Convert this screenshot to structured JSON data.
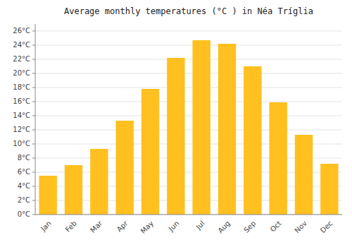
{
  "chart_data": {
    "type": "bar",
    "title": "Average monthly temperatures (°C ) in Néa Tríglia",
    "categories": [
      "Jan",
      "Feb",
      "Mar",
      "Apr",
      "May",
      "Jun",
      "Jul",
      "Aug",
      "Sep",
      "Oct",
      "Nov",
      "Dec"
    ],
    "values": [
      5.5,
      7.0,
      9.3,
      13.3,
      17.8,
      22.2,
      24.7,
      24.2,
      21.0,
      15.9,
      11.3,
      7.2
    ],
    "color": "#FFC020",
    "ylim": [
      0,
      27
    ],
    "yticks": [
      {
        "value": 0,
        "label": "0°C"
      },
      {
        "value": 2,
        "label": "2°C"
      },
      {
        "value": 4,
        "label": "4°C"
      },
      {
        "value": 6,
        "label": "6°C"
      },
      {
        "value": 8,
        "label": "8°C"
      },
      {
        "value": 10,
        "label": "10°C"
      },
      {
        "value": 12,
        "label": "12°C"
      },
      {
        "value": 14,
        "label": "14°C"
      },
      {
        "value": 16,
        "label": "16°C"
      },
      {
        "value": 18,
        "label": "18°C"
      },
      {
        "value": 20,
        "label": "20°C"
      },
      {
        "value": 22,
        "label": "22°C"
      },
      {
        "value": 24,
        "label": "24°C"
      },
      {
        "value": 26,
        "label": "26°C"
      }
    ],
    "grid": true
  }
}
